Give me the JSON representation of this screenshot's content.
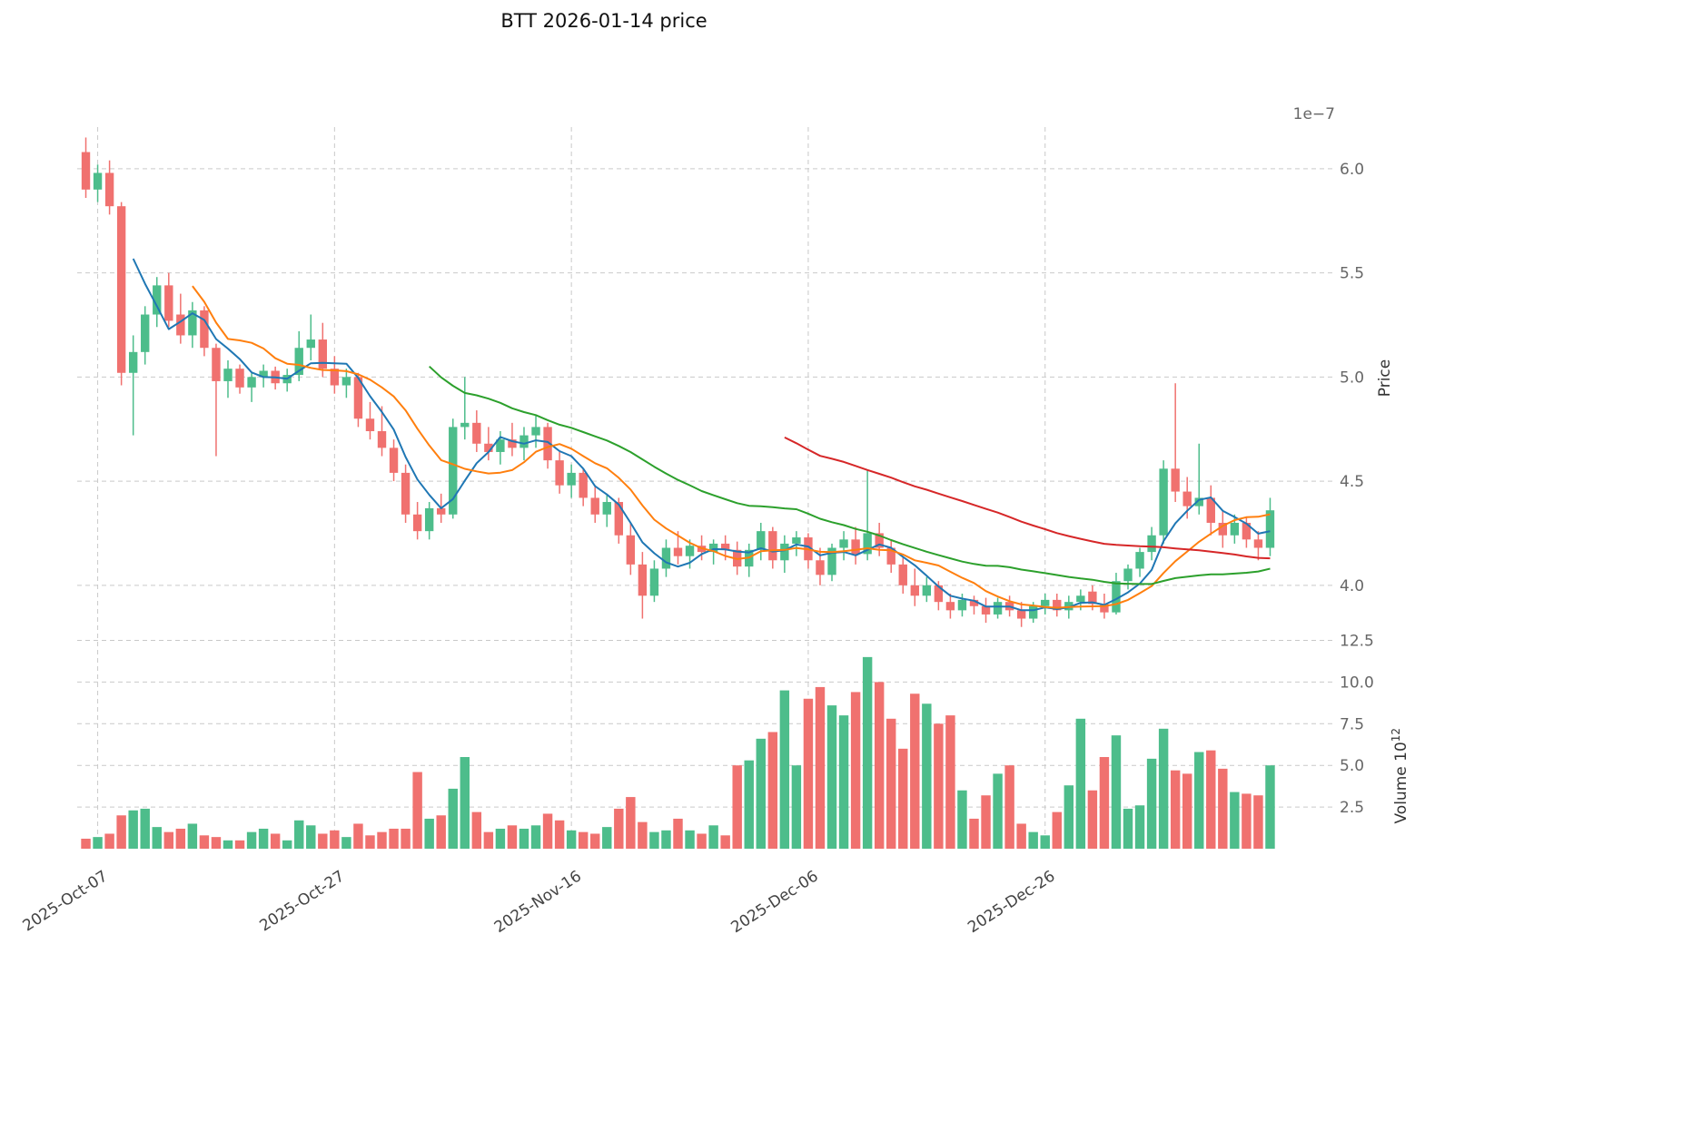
{
  "title": "BTT  2026-01-14  price",
  "axes": {
    "price_label": "Price",
    "volume_label_prefix": "Volume  10",
    "volume_label_exponent": "12",
    "offset_label": "1e−7",
    "price_ticks": [
      6.0,
      5.5,
      5.0,
      4.5,
      4.0
    ],
    "volume_ticks": [
      12.5,
      10.0,
      7.5,
      5.0,
      2.5
    ],
    "x_ticks": [
      {
        "index": 1,
        "label": "2025-Oct-07"
      },
      {
        "index": 21,
        "label": "2025-Oct-27"
      },
      {
        "index": 41,
        "label": "2025-Nov-16"
      },
      {
        "index": 61,
        "label": "2025-Dec-06"
      },
      {
        "index": 81,
        "label": "2025-Dec-26"
      }
    ]
  },
  "style": {
    "up_color": "#4dbd8b",
    "down_color": "#f0716f",
    "grid_color": "#c9c9c9",
    "ma_colors": {
      "ma5": "#1f77b4",
      "ma10": "#ff7f0e",
      "ma30": "#2ca02c",
      "ma60": "#d62728"
    }
  },
  "chart_data": {
    "type": "candlestick_with_volume",
    "title": "BTT  2026-01-14  price",
    "price_unit": "1e-7",
    "volume_unit": "1e12",
    "price_ylim": [
      3.79,
      6.2
    ],
    "volume_ylim": [
      0,
      12.8
    ],
    "grid": true,
    "moving_averages": [
      {
        "name": "ma5",
        "period": 5,
        "color": "#1f77b4"
      },
      {
        "name": "ma10",
        "period": 10,
        "color": "#ff7f0e"
      },
      {
        "name": "ma30",
        "period": 30,
        "color": "#2ca02c"
      },
      {
        "name": "ma60",
        "period": 60,
        "color": "#d62728"
      }
    ],
    "columns": [
      "date",
      "open",
      "high",
      "low",
      "close",
      "volume"
    ],
    "candles": [
      [
        "2025-10-06",
        6.08,
        6.15,
        5.86,
        5.9,
        0.6
      ],
      [
        "2025-10-07",
        5.9,
        6.02,
        5.84,
        5.98,
        0.7
      ],
      [
        "2025-10-08",
        5.98,
        6.04,
        5.78,
        5.82,
        0.9
      ],
      [
        "2025-10-09",
        5.82,
        5.84,
        4.96,
        5.02,
        2.0
      ],
      [
        "2025-10-10",
        5.02,
        5.2,
        4.72,
        5.12,
        2.3
      ],
      [
        "2025-10-11",
        5.12,
        5.34,
        5.06,
        5.3,
        2.4
      ],
      [
        "2025-10-12",
        5.3,
        5.48,
        5.24,
        5.44,
        1.3
      ],
      [
        "2025-10-13",
        5.44,
        5.5,
        5.24,
        5.27,
        1.0
      ],
      [
        "2025-10-14",
        5.3,
        5.4,
        5.16,
        5.2,
        1.2
      ],
      [
        "2025-10-15",
        5.2,
        5.36,
        5.14,
        5.32,
        1.5
      ],
      [
        "2025-10-16",
        5.32,
        5.34,
        5.1,
        5.14,
        0.8
      ],
      [
        "2025-10-17",
        5.14,
        5.16,
        4.62,
        4.98,
        0.7
      ],
      [
        "2025-10-18",
        4.98,
        5.08,
        4.9,
        5.04,
        0.5
      ],
      [
        "2025-10-19",
        5.04,
        5.06,
        4.92,
        4.95,
        0.5
      ],
      [
        "2025-10-20",
        4.95,
        5.02,
        4.88,
        5.0,
        1.0
      ],
      [
        "2025-10-21",
        5.0,
        5.06,
        4.95,
        5.03,
        1.2
      ],
      [
        "2025-10-22",
        5.03,
        5.05,
        4.94,
        4.97,
        0.9
      ],
      [
        "2025-10-23",
        4.97,
        5.04,
        4.93,
        5.01,
        0.5
      ],
      [
        "2025-10-24",
        5.01,
        5.22,
        4.98,
        5.14,
        1.7
      ],
      [
        "2025-10-25",
        5.14,
        5.3,
        5.08,
        5.18,
        1.4
      ],
      [
        "2025-10-26",
        5.18,
        5.26,
        5.0,
        5.04,
        0.9
      ],
      [
        "2025-10-27",
        5.04,
        5.1,
        4.92,
        4.96,
        1.1
      ],
      [
        "2025-10-28",
        4.96,
        5.04,
        4.9,
        5.0,
        0.7
      ],
      [
        "2025-10-29",
        5.0,
        5.02,
        4.76,
        4.8,
        1.5
      ],
      [
        "2025-10-30",
        4.8,
        4.88,
        4.7,
        4.74,
        0.8
      ],
      [
        "2025-10-31",
        4.74,
        4.86,
        4.62,
        4.66,
        1.0
      ],
      [
        "2025-11-01",
        4.66,
        4.7,
        4.5,
        4.54,
        1.2
      ],
      [
        "2025-11-02",
        4.54,
        4.58,
        4.3,
        4.34,
        1.2
      ],
      [
        "2025-11-03",
        4.34,
        4.4,
        4.22,
        4.26,
        4.6
      ],
      [
        "2025-11-04",
        4.26,
        4.4,
        4.22,
        4.37,
        1.8
      ],
      [
        "2025-11-05",
        4.37,
        4.44,
        4.3,
        4.34,
        2.0
      ],
      [
        "2025-11-06",
        4.34,
        4.8,
        4.32,
        4.76,
        3.6
      ],
      [
        "2025-11-07",
        4.76,
        5.0,
        4.7,
        4.78,
        5.5
      ],
      [
        "2025-11-08",
        4.78,
        4.84,
        4.64,
        4.68,
        2.2
      ],
      [
        "2025-11-09",
        4.68,
        4.76,
        4.6,
        4.64,
        1.0
      ],
      [
        "2025-11-10",
        4.64,
        4.74,
        4.58,
        4.7,
        1.2
      ],
      [
        "2025-11-11",
        4.7,
        4.78,
        4.62,
        4.66,
        1.4
      ],
      [
        "2025-11-12",
        4.66,
        4.76,
        4.6,
        4.72,
        1.2
      ],
      [
        "2025-11-13",
        4.72,
        4.82,
        4.66,
        4.76,
        1.4
      ],
      [
        "2025-11-14",
        4.76,
        4.78,
        4.56,
        4.6,
        2.1
      ],
      [
        "2025-11-15",
        4.6,
        4.64,
        4.44,
        4.48,
        1.7
      ],
      [
        "2025-11-16",
        4.48,
        4.58,
        4.42,
        4.54,
        1.1
      ],
      [
        "2025-11-17",
        4.54,
        4.56,
        4.38,
        4.42,
        1.0
      ],
      [
        "2025-11-18",
        4.42,
        4.48,
        4.3,
        4.34,
        0.9
      ],
      [
        "2025-11-19",
        4.34,
        4.44,
        4.28,
        4.4,
        1.3
      ],
      [
        "2025-11-20",
        4.4,
        4.42,
        4.2,
        4.24,
        2.4
      ],
      [
        "2025-11-21",
        4.24,
        4.3,
        4.05,
        4.1,
        3.1
      ],
      [
        "2025-11-22",
        4.1,
        4.16,
        3.84,
        3.95,
        1.6
      ],
      [
        "2025-11-23",
        3.95,
        4.12,
        3.92,
        4.08,
        1.0
      ],
      [
        "2025-11-24",
        4.08,
        4.22,
        4.04,
        4.18,
        1.1
      ],
      [
        "2025-11-25",
        4.18,
        4.26,
        4.1,
        4.14,
        1.8
      ],
      [
        "2025-11-26",
        4.14,
        4.22,
        4.08,
        4.19,
        1.1
      ],
      [
        "2025-11-27",
        4.19,
        4.24,
        4.12,
        4.16,
        0.9
      ],
      [
        "2025-11-28",
        4.16,
        4.22,
        4.1,
        4.2,
        1.4
      ],
      [
        "2025-11-29",
        4.2,
        4.24,
        4.12,
        4.17,
        0.8
      ],
      [
        "2025-11-30",
        4.17,
        4.21,
        4.05,
        4.09,
        5.0
      ],
      [
        "2025-12-01",
        4.09,
        4.2,
        4.04,
        4.17,
        5.3
      ],
      [
        "2025-12-02",
        4.17,
        4.3,
        4.12,
        4.26,
        6.6
      ],
      [
        "2025-12-03",
        4.26,
        4.28,
        4.08,
        4.12,
        7.0
      ],
      [
        "2025-12-04",
        4.12,
        4.24,
        4.06,
        4.2,
        9.5
      ],
      [
        "2025-12-05",
        4.2,
        4.26,
        4.14,
        4.23,
        5.0
      ],
      [
        "2025-12-06",
        4.23,
        4.25,
        4.08,
        4.12,
        9.0
      ],
      [
        "2025-12-07",
        4.12,
        4.18,
        4.0,
        4.05,
        9.7
      ],
      [
        "2025-12-08",
        4.05,
        4.2,
        4.02,
        4.18,
        8.6
      ],
      [
        "2025-12-09",
        4.18,
        4.26,
        4.12,
        4.22,
        8.0
      ],
      [
        "2025-12-10",
        4.22,
        4.28,
        4.1,
        4.15,
        9.4
      ],
      [
        "2025-12-11",
        4.15,
        4.55,
        4.12,
        4.25,
        11.5
      ],
      [
        "2025-12-12",
        4.25,
        4.3,
        4.14,
        4.18,
        10.0
      ],
      [
        "2025-12-13",
        4.18,
        4.22,
        4.06,
        4.1,
        7.8
      ],
      [
        "2025-12-14",
        4.1,
        4.14,
        3.96,
        4.0,
        6.0
      ],
      [
        "2025-12-15",
        4.0,
        4.08,
        3.9,
        3.95,
        9.3
      ],
      [
        "2025-12-16",
        3.95,
        4.04,
        3.92,
        4.0,
        8.7
      ],
      [
        "2025-12-17",
        4.0,
        4.02,
        3.88,
        3.92,
        7.5
      ],
      [
        "2025-12-18",
        3.92,
        3.96,
        3.84,
        3.88,
        8.0
      ],
      [
        "2025-12-19",
        3.88,
        3.96,
        3.85,
        3.93,
        3.5
      ],
      [
        "2025-12-20",
        3.93,
        3.95,
        3.86,
        3.9,
        1.8
      ],
      [
        "2025-12-21",
        3.9,
        3.94,
        3.82,
        3.86,
        3.2
      ],
      [
        "2025-12-22",
        3.86,
        3.94,
        3.84,
        3.92,
        4.5
      ],
      [
        "2025-12-23",
        3.92,
        3.95,
        3.85,
        3.88,
        5.0
      ],
      [
        "2025-12-24",
        3.88,
        3.92,
        3.8,
        3.84,
        1.5
      ],
      [
        "2025-12-25",
        3.84,
        3.92,
        3.82,
        3.9,
        1.0
      ],
      [
        "2025-12-26",
        3.9,
        3.96,
        3.86,
        3.93,
        0.8
      ],
      [
        "2025-12-27",
        3.93,
        3.96,
        3.85,
        3.88,
        2.2
      ],
      [
        "2025-12-28",
        3.88,
        3.95,
        3.84,
        3.92,
        3.8
      ],
      [
        "2025-12-29",
        3.92,
        3.98,
        3.88,
        3.95,
        7.8
      ],
      [
        "2025-12-30",
        3.97,
        4.0,
        3.88,
        3.91,
        3.5
      ],
      [
        "2025-12-31",
        3.91,
        3.96,
        3.84,
        3.87,
        5.5
      ],
      [
        "2026-01-01",
        3.87,
        4.06,
        3.86,
        4.02,
        6.8
      ],
      [
        "2026-01-02",
        4.02,
        4.1,
        3.98,
        4.08,
        2.4
      ],
      [
        "2026-01-03",
        4.08,
        4.18,
        4.04,
        4.16,
        2.6
      ],
      [
        "2026-01-04",
        4.16,
        4.28,
        4.12,
        4.24,
        5.4
      ],
      [
        "2026-01-05",
        4.24,
        4.6,
        4.2,
        4.56,
        7.2
      ],
      [
        "2026-01-06",
        4.56,
        4.97,
        4.4,
        4.45,
        4.7
      ],
      [
        "2026-01-07",
        4.45,
        4.52,
        4.32,
        4.38,
        4.5
      ],
      [
        "2026-01-08",
        4.38,
        4.68,
        4.34,
        4.42,
        5.8
      ],
      [
        "2026-01-09",
        4.42,
        4.48,
        4.24,
        4.3,
        5.9
      ],
      [
        "2026-01-10",
        4.3,
        4.36,
        4.18,
        4.24,
        4.8
      ],
      [
        "2026-01-11",
        4.24,
        4.34,
        4.2,
        4.3,
        3.4
      ],
      [
        "2026-01-12",
        4.3,
        4.33,
        4.18,
        4.22,
        3.3
      ],
      [
        "2026-01-13",
        4.22,
        4.26,
        4.12,
        4.18,
        3.2
      ],
      [
        "2026-01-14",
        4.18,
        4.42,
        4.14,
        4.36,
        5.0
      ]
    ]
  }
}
